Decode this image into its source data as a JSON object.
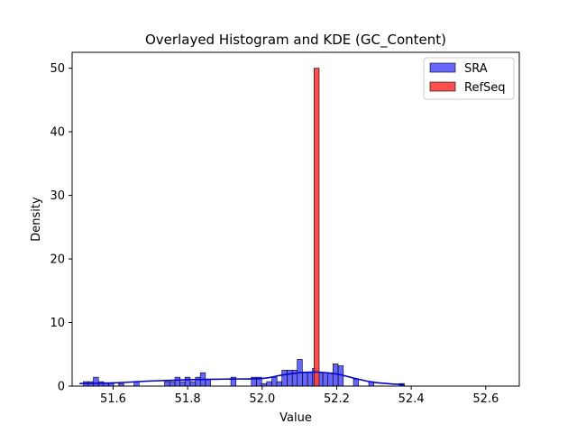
{
  "chart_data": {
    "type": "bar",
    "title": "Overlayed Histogram and KDE (GC_Content)",
    "xlabel": "Value",
    "ylabel": "Density",
    "xlim": [
      51.49,
      52.69
    ],
    "ylim": [
      0,
      52.5
    ],
    "xticks": [
      "51.6",
      "51.8",
      "52.0",
      "52.2",
      "52.4",
      "52.6"
    ],
    "yticks": [
      "0",
      "10",
      "20",
      "30",
      "40",
      "50"
    ],
    "legend_position": "top-right",
    "bin_width": 0.0137,
    "series": [
      {
        "name": "SRA",
        "color": "#5555ff",
        "bins": [
          {
            "x": 51.52,
            "y": 0.7
          },
          {
            "x": 51.533,
            "y": 0.7
          },
          {
            "x": 51.547,
            "y": 1.4
          },
          {
            "x": 51.561,
            "y": 0.7
          },
          {
            "x": 51.574,
            "y": 0.4
          },
          {
            "x": 51.588,
            "y": 0.4
          },
          {
            "x": 51.615,
            "y": 0.4
          },
          {
            "x": 51.656,
            "y": 0.7
          },
          {
            "x": 51.738,
            "y": 0.7
          },
          {
            "x": 51.752,
            "y": 0.7
          },
          {
            "x": 51.766,
            "y": 1.4
          },
          {
            "x": 51.779,
            "y": 0.7
          },
          {
            "x": 51.793,
            "y": 1.4
          },
          {
            "x": 51.807,
            "y": 0.7
          },
          {
            "x": 51.821,
            "y": 1.4
          },
          {
            "x": 51.834,
            "y": 2.1
          },
          {
            "x": 51.848,
            "y": 1.1
          },
          {
            "x": 51.916,
            "y": 1.4
          },
          {
            "x": 51.971,
            "y": 1.4
          },
          {
            "x": 51.985,
            "y": 1.4
          },
          {
            "x": 51.998,
            "y": 0.4
          },
          {
            "x": 52.012,
            "y": 0.7
          },
          {
            "x": 52.026,
            "y": 1.4
          },
          {
            "x": 52.039,
            "y": 0.7
          },
          {
            "x": 52.053,
            "y": 2.5
          },
          {
            "x": 52.067,
            "y": 2.5
          },
          {
            "x": 52.081,
            "y": 2.5
          },
          {
            "x": 52.094,
            "y": 4.2
          },
          {
            "x": 52.108,
            "y": 2.1
          },
          {
            "x": 52.122,
            "y": 2.1
          },
          {
            "x": 52.135,
            "y": 2.8
          },
          {
            "x": 52.149,
            "y": 2.1
          },
          {
            "x": 52.163,
            "y": 2.1
          },
          {
            "x": 52.176,
            "y": 2.1
          },
          {
            "x": 52.19,
            "y": 3.5
          },
          {
            "x": 52.204,
            "y": 3.2
          },
          {
            "x": 52.245,
            "y": 1.1
          },
          {
            "x": 52.286,
            "y": 0.7
          },
          {
            "x": 52.368,
            "y": 0.4
          }
        ],
        "kde": {
          "x": [
            51.51,
            51.6,
            51.7,
            51.8,
            51.9,
            52.0,
            52.05,
            52.1,
            52.15,
            52.2,
            52.25,
            52.3,
            52.38
          ],
          "y": [
            0.4,
            0.5,
            0.8,
            1.0,
            1.1,
            1.2,
            1.7,
            2.1,
            2.2,
            1.9,
            1.2,
            0.6,
            0.2
          ]
        }
      },
      {
        "name": "RefSeq",
        "color": "#ff4444",
        "bins": [
          {
            "x": 52.1392,
            "y": 50
          }
        ]
      }
    ]
  }
}
